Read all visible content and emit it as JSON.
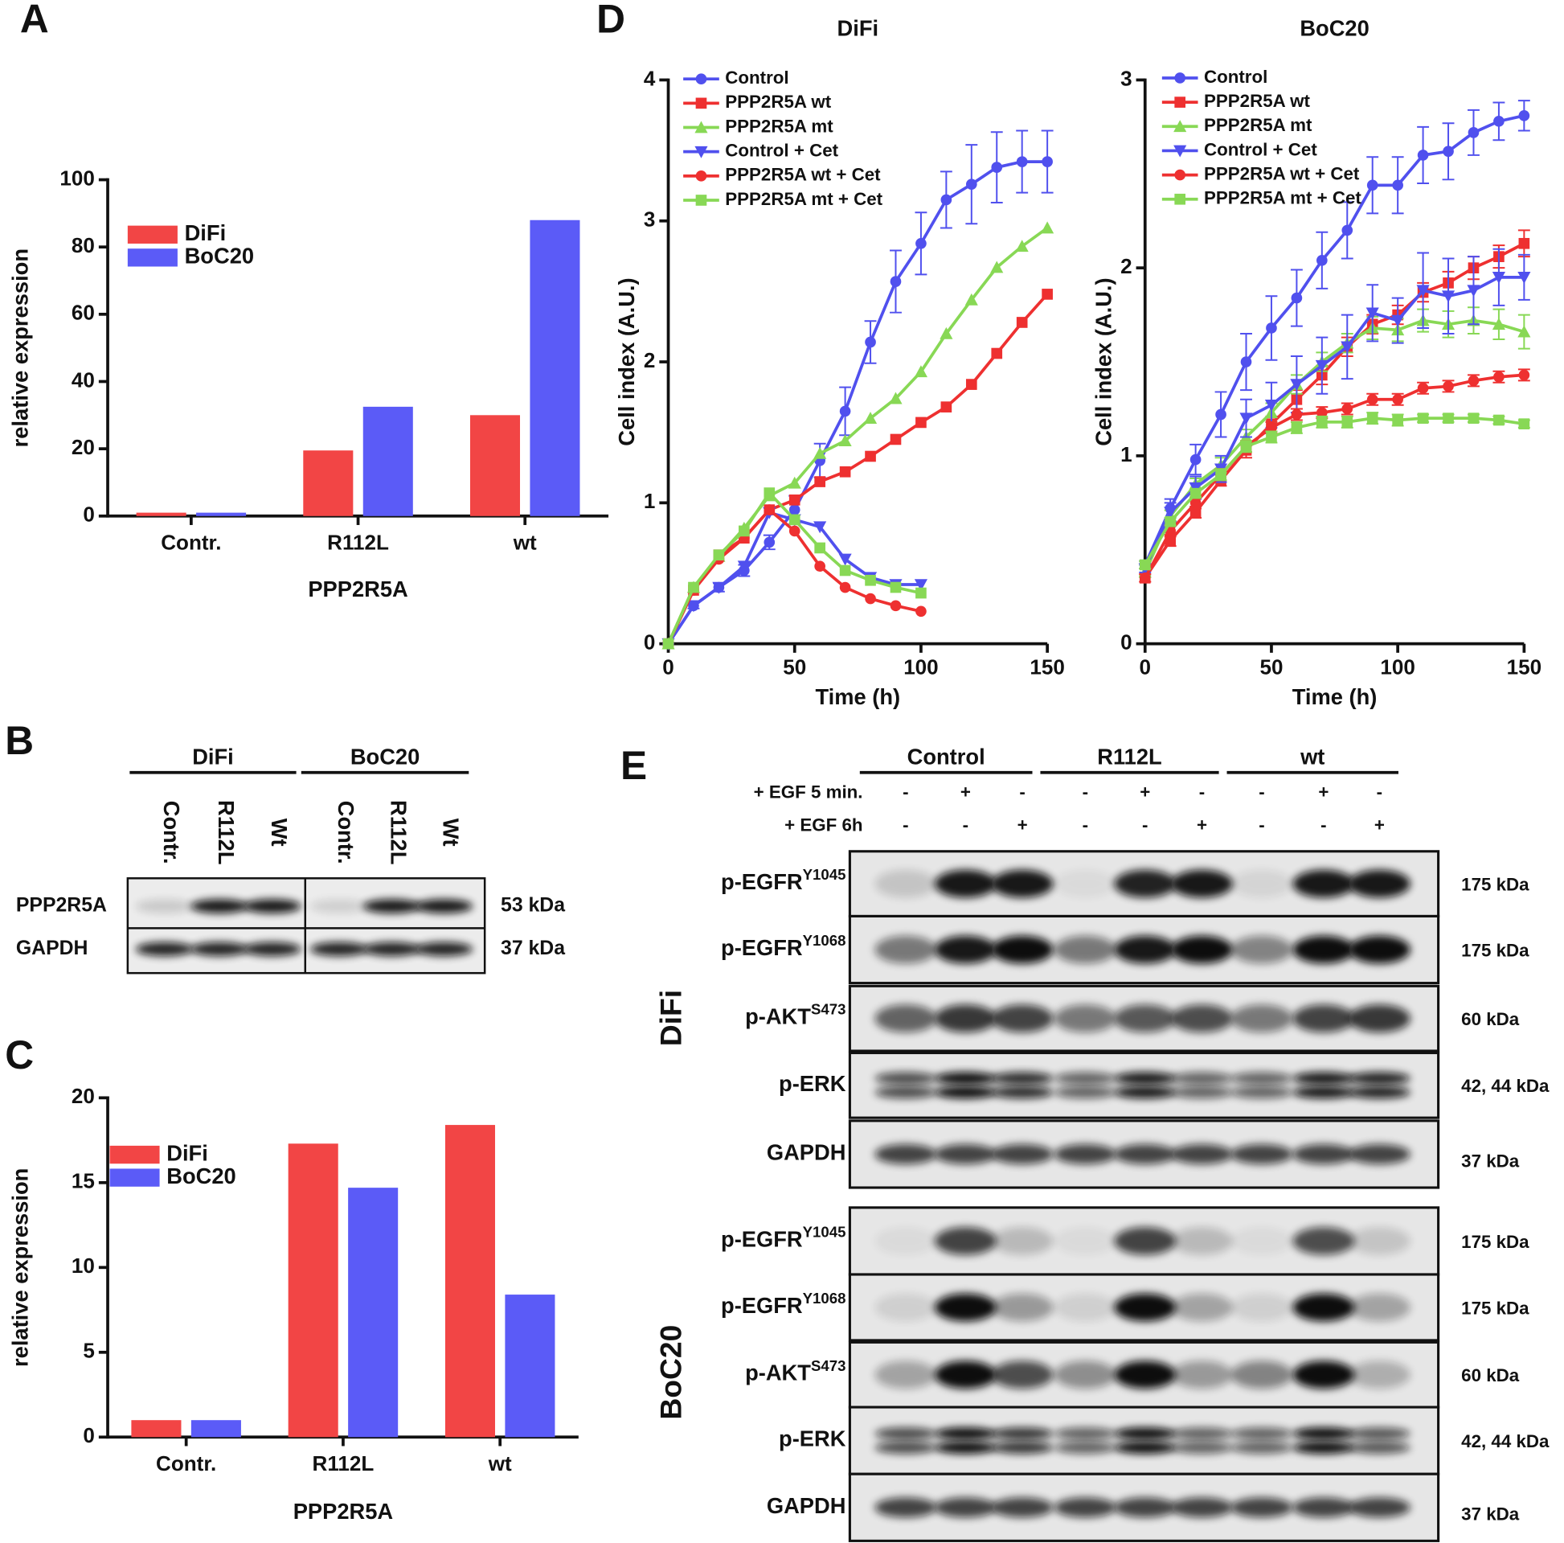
{
  "panel_labels": [
    "A",
    "B",
    "C",
    "D",
    "E"
  ],
  "chart_data": [
    {
      "type": "bar",
      "ylabel": "relative expression",
      "xlabel": "PPP2R5A",
      "categories": [
        "Contr.",
        "R112L",
        "wt"
      ],
      "series": [
        {
          "name": "DiFi",
          "color": "#f24545",
          "values": [
            1,
            19.5,
            30
          ]
        },
        {
          "name": "BoC20",
          "color": "#5b5bf7",
          "values": [
            1,
            32.5,
            88
          ]
        }
      ],
      "ylim": [
        0,
        100
      ],
      "yticks": [
        0,
        20,
        40,
        60,
        80,
        100
      ]
    },
    {
      "type": "bar",
      "ylabel": "relative expression",
      "xlabel": "PPP2R5A",
      "categories": [
        "Contr.",
        "R112L",
        "wt"
      ],
      "series": [
        {
          "name": "DiFi",
          "color": "#f24545",
          "values": [
            1,
            17.3,
            18.4
          ]
        },
        {
          "name": "BoC20",
          "color": "#5b5bf7",
          "values": [
            1,
            14.7,
            8.4
          ]
        }
      ],
      "ylim": [
        0,
        20
      ],
      "yticks": [
        0,
        5,
        10,
        15,
        20
      ]
    },
    {
      "type": "line",
      "title": "DiFi",
      "ylabel": "Cell index (A.U.)",
      "xlabel": "Time (h)",
      "x": [
        0,
        10,
        20,
        30,
        40,
        50,
        60,
        70,
        80,
        90,
        100,
        110,
        120,
        130,
        140,
        150
      ],
      "series": [
        {
          "name": "Control",
          "color": "#5050ee",
          "marker": "circle",
          "values": [
            0,
            0.27,
            0.4,
            0.52,
            0.72,
            0.95,
            1.3,
            1.65,
            2.14,
            2.57,
            2.84,
            3.15,
            3.26,
            3.38,
            3.42,
            3.42
          ],
          "errors": [
            0,
            0.02,
            0.03,
            0.04,
            0.05,
            0.1,
            0.12,
            0.17,
            0.15,
            0.22,
            0.22,
            0.2,
            0.28,
            0.25,
            0.22,
            0.22
          ]
        },
        {
          "name": "PPP2R5A wt",
          "color": "#ee3030",
          "marker": "square",
          "values": [
            0,
            0.38,
            0.63,
            0.75,
            0.95,
            1.02,
            1.15,
            1.22,
            1.33,
            1.45,
            1.57,
            1.68,
            1.84,
            2.06,
            2.28,
            2.48
          ]
        },
        {
          "name": "PPP2R5A mt",
          "color": "#88d855",
          "marker": "triangle",
          "values": [
            0,
            0.4,
            0.62,
            0.82,
            1.05,
            1.14,
            1.35,
            1.44,
            1.6,
            1.74,
            1.93,
            2.2,
            2.44,
            2.67,
            2.82,
            2.95
          ]
        },
        {
          "name": "Control + Cet",
          "color": "#5050ee",
          "marker": "triangle-down",
          "values": [
            0,
            0.27,
            0.4,
            0.55,
            0.93,
            0.88,
            0.83,
            0.6,
            0.47,
            0.42,
            0.42,
            null,
            null,
            null,
            null,
            null
          ]
        },
        {
          "name": "PPP2R5A wt + Cet",
          "color": "#ee3030",
          "marker": "circle",
          "values": [
            0,
            0.38,
            0.6,
            0.75,
            0.95,
            0.8,
            0.55,
            0.4,
            0.32,
            0.27,
            0.23,
            null,
            null,
            null,
            null,
            null
          ]
        },
        {
          "name": "PPP2R5A mt + Cet",
          "color": "#88d855",
          "marker": "square",
          "values": [
            0,
            0.4,
            0.63,
            0.8,
            1.07,
            0.88,
            0.68,
            0.52,
            0.45,
            0.4,
            0.36,
            null,
            null,
            null,
            null,
            null
          ]
        }
      ],
      "xlim": [
        0,
        150
      ],
      "xticks": [
        0,
        50,
        100,
        150
      ],
      "ylim": [
        0,
        4
      ],
      "yticks": [
        0,
        1,
        2,
        3,
        4
      ]
    },
    {
      "type": "line",
      "title": "BoC20",
      "ylabel": "Cell index (A.U.)",
      "xlabel": "Time (h)",
      "x": [
        0,
        10,
        20,
        30,
        40,
        50,
        60,
        70,
        80,
        90,
        100,
        110,
        120,
        130,
        140,
        150
      ],
      "series": [
        {
          "name": "Control",
          "color": "#5050ee",
          "marker": "circle",
          "values": [
            0.42,
            0.72,
            0.98,
            1.22,
            1.5,
            1.68,
            1.84,
            2.04,
            2.2,
            2.44,
            2.44,
            2.6,
            2.62,
            2.72,
            2.78,
            2.81
          ],
          "errors": [
            0.02,
            0.05,
            0.08,
            0.12,
            0.15,
            0.17,
            0.15,
            0.15,
            0.15,
            0.15,
            0.15,
            0.15,
            0.15,
            0.12,
            0.1,
            0.08
          ]
        },
        {
          "name": "PPP2R5A wt",
          "color": "#ee3030",
          "marker": "square",
          "values": [
            0.35,
            0.55,
            0.7,
            0.87,
            1.03,
            1.17,
            1.3,
            1.43,
            1.58,
            1.7,
            1.75,
            1.87,
            1.92,
            2.0,
            2.06,
            2.13
          ],
          "errors": [
            0.02,
            0.03,
            0.03,
            0.03,
            0.04,
            0.04,
            0.05,
            0.05,
            0.05,
            0.05,
            0.05,
            0.05,
            0.06,
            0.06,
            0.06,
            0.07
          ]
        },
        {
          "name": "PPP2R5A mt",
          "color": "#88d855",
          "marker": "triangle",
          "values": [
            0.38,
            0.68,
            0.85,
            0.95,
            1.1,
            1.23,
            1.38,
            1.5,
            1.6,
            1.68,
            1.67,
            1.72,
            1.7,
            1.72,
            1.7,
            1.66
          ],
          "errors": [
            0.02,
            0.03,
            0.03,
            0.04,
            0.04,
            0.05,
            0.05,
            0.05,
            0.05,
            0.06,
            0.06,
            0.06,
            0.07,
            0.07,
            0.08,
            0.09
          ]
        },
        {
          "name": "Control + Cet",
          "color": "#5050ee",
          "marker": "triangle-down",
          "values": [
            0.4,
            0.7,
            0.83,
            0.93,
            1.2,
            1.27,
            1.38,
            1.48,
            1.58,
            1.76,
            1.72,
            1.88,
            1.85,
            1.88,
            1.95,
            1.95
          ],
          "errors": [
            0.02,
            0.05,
            0.06,
            0.07,
            0.1,
            0.12,
            0.15,
            0.15,
            0.17,
            0.15,
            0.12,
            0.2,
            0.2,
            0.18,
            0.15,
            0.12
          ]
        },
        {
          "name": "PPP2R5A wt + Cet",
          "color": "#ee3030",
          "marker": "circle",
          "values": [
            0.35,
            0.6,
            0.75,
            0.9,
            1.05,
            1.15,
            1.22,
            1.23,
            1.25,
            1.3,
            1.3,
            1.36,
            1.37,
            1.4,
            1.42,
            1.43
          ],
          "errors": [
            0.02,
            0.03,
            0.03,
            0.03,
            0.03,
            0.03,
            0.03,
            0.03,
            0.03,
            0.03,
            0.03,
            0.03,
            0.03,
            0.03,
            0.03,
            0.03
          ]
        },
        {
          "name": "PPP2R5A mt + Cet",
          "color": "#88d855",
          "marker": "square",
          "values": [
            0.42,
            0.65,
            0.8,
            0.9,
            1.05,
            1.1,
            1.15,
            1.18,
            1.18,
            1.2,
            1.19,
            1.2,
            1.2,
            1.2,
            1.19,
            1.17
          ],
          "errors": [
            0.02,
            0.02,
            0.02,
            0.03,
            0.03,
            0.03,
            0.03,
            0.03,
            0.03,
            0.03,
            0.03,
            0.02,
            0.02,
            0.02,
            0.02,
            0.02
          ]
        }
      ],
      "xlim": [
        0,
        150
      ],
      "xticks": [
        0,
        50,
        100,
        150
      ],
      "ylim": [
        0,
        3
      ],
      "yticks": [
        0,
        1,
        2,
        3
      ]
    }
  ],
  "blot_b": {
    "groups": [
      {
        "name": "DiFi",
        "lanes": [
          "Contr.",
          "R112L",
          "Wt"
        ]
      },
      {
        "name": "BoC20",
        "lanes": [
          "Contr.",
          "R112L",
          "Wt"
        ]
      }
    ],
    "rows": [
      {
        "label": "PPP2R5A",
        "size": "53 kDa"
      },
      {
        "label": "GAPDH",
        "size": "37 kDa"
      }
    ]
  },
  "blot_e": {
    "groups": [
      "Control",
      "R112L",
      "wt"
    ],
    "treatments": [
      {
        "label": "+ EGF 5 min.",
        "signs": [
          "-",
          "+",
          "-",
          "-",
          "+",
          "-",
          "-",
          "+",
          "-"
        ]
      },
      {
        "label": "+ EGF 6h",
        "signs": [
          "-",
          "-",
          "+",
          "-",
          "-",
          "+",
          "-",
          "-",
          "+"
        ]
      }
    ],
    "cell_lines": [
      {
        "name": "DiFi",
        "rows": [
          {
            "label": "p-EGFR",
            "sup": "Y1045",
            "size": "175 kDa"
          },
          {
            "label": "p-EGFR",
            "sup": "Y1068",
            "size": "175 kDa"
          },
          {
            "label": "p-AKT",
            "sup": "S473",
            "size": "60 kDa"
          },
          {
            "label": "p-ERK",
            "size": "42, 44 kDa"
          },
          {
            "label": "GAPDH",
            "size": "37 kDa"
          }
        ]
      },
      {
        "name": "BoC20",
        "rows": [
          {
            "label": "p-EGFR",
            "sup": "Y1045",
            "size": "175 kDa"
          },
          {
            "label": "p-EGFR",
            "sup": "Y1068",
            "size": "175 kDa"
          },
          {
            "label": "p-AKT",
            "sup": "S473",
            "size": "60 kDa"
          },
          {
            "label": "p-ERK",
            "size": "42, 44 kDa"
          },
          {
            "label": "GAPDH",
            "size": "37 kDa"
          }
        ]
      }
    ]
  }
}
